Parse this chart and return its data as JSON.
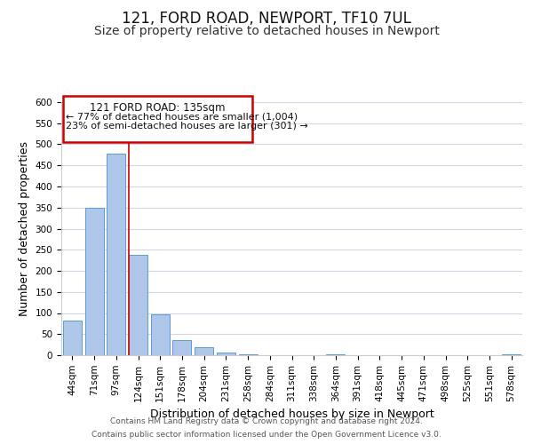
{
  "title": "121, FORD ROAD, NEWPORT, TF10 7UL",
  "subtitle": "Size of property relative to detached houses in Newport",
  "xlabel": "Distribution of detached houses by size in Newport",
  "ylabel": "Number of detached properties",
  "bar_labels": [
    "44sqm",
    "71sqm",
    "97sqm",
    "124sqm",
    "151sqm",
    "178sqm",
    "204sqm",
    "231sqm",
    "258sqm",
    "284sqm",
    "311sqm",
    "338sqm",
    "364sqm",
    "391sqm",
    "418sqm",
    "445sqm",
    "471sqm",
    "498sqm",
    "525sqm",
    "551sqm",
    "578sqm"
  ],
  "bar_values": [
    83,
    350,
    478,
    237,
    97,
    35,
    18,
    7,
    3,
    0,
    0,
    0,
    3,
    0,
    0,
    0,
    0,
    0,
    0,
    0,
    3
  ],
  "bar_color": "#aec6e8",
  "bar_edge_color": "#5b9bd5",
  "annotation_text_line1": "121 FORD ROAD: 135sqm",
  "annotation_text_line2": "← 77% of detached houses are smaller (1,004)",
  "annotation_text_line3": "23% of semi-detached houses are larger (301) →",
  "annotation_box_edge_color": "#cc0000",
  "red_line_color": "#cc0000",
  "ylim": [
    0,
    600
  ],
  "yticks": [
    0,
    50,
    100,
    150,
    200,
    250,
    300,
    350,
    400,
    450,
    500,
    550,
    600
  ],
  "footer_line1": "Contains HM Land Registry data © Crown copyright and database right 2024.",
  "footer_line2": "Contains public sector information licensed under the Open Government Licence v3.0.",
  "bg_color": "#ffffff",
  "grid_color": "#d0d8e8",
  "title_fontsize": 12,
  "subtitle_fontsize": 10,
  "axis_label_fontsize": 9,
  "tick_fontsize": 7.5,
  "footer_fontsize": 6.5
}
